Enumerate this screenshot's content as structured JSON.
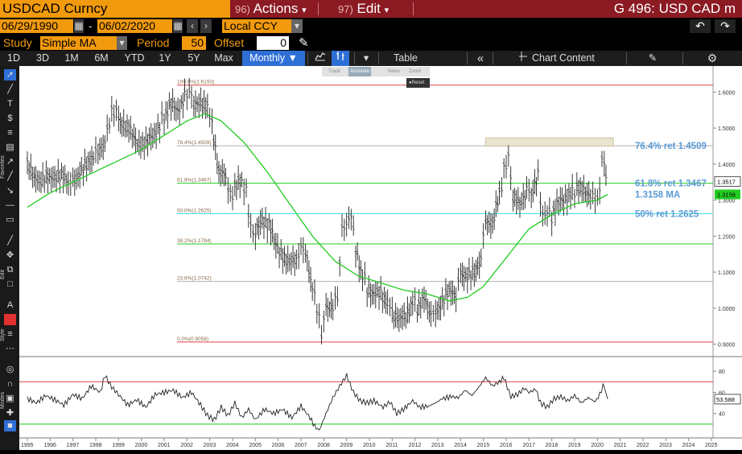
{
  "title_bar": {
    "ticker": "USDCAD Curncy",
    "actions_num": "96)",
    "actions_label": "Actions",
    "edit_num": "97)",
    "edit_label": "Edit",
    "right_title": "G 496: USD CAD m"
  },
  "date_row": {
    "start_date": "06/29/1990",
    "end_date": "06/02/2020",
    "currency": "Local CCY"
  },
  "study_row": {
    "study_label": "Study",
    "study_value": "Simple MA",
    "period_label": "Period",
    "period_value": "50",
    "offset_label": "Offset",
    "offset_value": "0"
  },
  "toolbar": {
    "ranges": [
      "1D",
      "3D",
      "1M",
      "6M",
      "YTD",
      "1Y",
      "5Y",
      "Max"
    ],
    "frequency": "Monthly",
    "table_label": "Table",
    "chart_content_label": "Chart Content"
  },
  "mini_toolbar": {
    "track": "Track",
    "annotate": "Annotate",
    "news": "News",
    "zoom": "Zoom",
    "reset": "Reset"
  },
  "left_labels": {
    "favorites": "Favorites",
    "edit": "Edit",
    "style": "Style",
    "modes": "Modes"
  },
  "colors": {
    "brand_orange": "#f29a0d",
    "title_red": "#8b1a23",
    "ma_green": "#22cc22",
    "fib_label_blue": "#5b9bd5"
  },
  "chart_data": {
    "type": "line",
    "x_label_years": [
      "1995",
      "1996",
      "1997",
      "1998",
      "1999",
      "2000",
      "2001",
      "2002",
      "2003",
      "2004",
      "2005",
      "2006",
      "2007",
      "2008",
      "2009",
      "2010",
      "2011",
      "2012",
      "2013",
      "2014",
      "2015",
      "2016",
      "2017",
      "2018",
      "2019",
      "2020",
      "2021",
      "2022",
      "2023",
      "2024",
      "2025"
    ],
    "price_ticks": [
      "1.6000",
      "1.5000",
      "1.4000",
      "1.3000",
      "1.2000",
      "1.1000",
      "1.0000",
      "0.9000"
    ],
    "ylim": [
      0.89,
      1.65
    ],
    "last_price": "1.3517",
    "ma_value": "1.3158",
    "fib_levels": [
      {
        "label": "100.0%(1.6193)",
        "value": 1.6193,
        "color": "#e04040"
      },
      {
        "label": "76.4%(1.4509)",
        "value": 1.4509,
        "color": "#b0b0b0"
      },
      {
        "label": "61.8%(1.3467)",
        "value": 1.3467,
        "color": "#22cc22"
      },
      {
        "label": "50.0%(1.2625)",
        "value": 1.2625,
        "color": "#33dddd"
      },
      {
        "label": "38.2%(1.1784)",
        "value": 1.1784,
        "color": "#22cc22"
      },
      {
        "label": "23.6%(1.0742)",
        "value": 1.0742,
        "color": "#b0b0b0"
      },
      {
        "label": "0.0%(0.9058)",
        "value": 0.9058,
        "color": "#e04040"
      }
    ],
    "annotations": [
      {
        "text": "76.4% ret 1.4509",
        "value": 1.4509
      },
      {
        "text": "61.8% ret 1.3467",
        "value": 1.3467
      },
      {
        "text": "1.3158 MA",
        "value": 1.3158
      },
      {
        "text": "50% ret 1.2625",
        "value": 1.2625
      }
    ],
    "price_series": [
      [
        1995.0,
        1.39
      ],
      [
        1995.3,
        1.37
      ],
      [
        1995.6,
        1.35
      ],
      [
        1995.9,
        1.36
      ],
      [
        1996.2,
        1.37
      ],
      [
        1996.5,
        1.36
      ],
      [
        1996.8,
        1.35
      ],
      [
        1997.0,
        1.35
      ],
      [
        1997.3,
        1.38
      ],
      [
        1997.6,
        1.39
      ],
      [
        1997.9,
        1.42
      ],
      [
        1998.1,
        1.44
      ],
      [
        1998.4,
        1.46
      ],
      [
        1998.6,
        1.52
      ],
      [
        1998.8,
        1.55
      ],
      [
        1999.0,
        1.53
      ],
      [
        1999.3,
        1.5
      ],
      [
        1999.6,
        1.48
      ],
      [
        1999.9,
        1.46
      ],
      [
        2000.2,
        1.45
      ],
      [
        2000.5,
        1.48
      ],
      [
        2000.8,
        1.51
      ],
      [
        2001.0,
        1.53
      ],
      [
        2001.3,
        1.56
      ],
      [
        2001.6,
        1.55
      ],
      [
        2001.9,
        1.59
      ],
      [
        2002.1,
        1.6
      ],
      [
        2002.3,
        1.57
      ],
      [
        2002.6,
        1.56
      ],
      [
        2002.9,
        1.56
      ],
      [
        2003.1,
        1.51
      ],
      [
        2003.4,
        1.38
      ],
      [
        2003.7,
        1.36
      ],
      [
        2003.9,
        1.31
      ],
      [
        2004.1,
        1.33
      ],
      [
        2004.4,
        1.35
      ],
      [
        2004.6,
        1.32
      ],
      [
        2004.8,
        1.22
      ],
      [
        2005.0,
        1.2
      ],
      [
        2005.3,
        1.25
      ],
      [
        2005.6,
        1.23
      ],
      [
        2005.9,
        1.17
      ],
      [
        2006.2,
        1.15
      ],
      [
        2006.5,
        1.12
      ],
      [
        2006.8,
        1.13
      ],
      [
        2007.0,
        1.17
      ],
      [
        2007.2,
        1.15
      ],
      [
        2007.5,
        1.06
      ],
      [
        2007.7,
        1.0
      ],
      [
        2007.9,
        0.93
      ],
      [
        2008.1,
        1.0
      ],
      [
        2008.4,
        1.01
      ],
      [
        2008.6,
        1.03
      ],
      [
        2008.8,
        1.22
      ],
      [
        2009.0,
        1.23
      ],
      [
        2009.2,
        1.26
      ],
      [
        2009.4,
        1.16
      ],
      [
        2009.7,
        1.09
      ],
      [
        2009.9,
        1.06
      ],
      [
        2010.2,
        1.03
      ],
      [
        2010.5,
        1.04
      ],
      [
        2010.8,
        1.02
      ],
      [
        2011.0,
        0.99
      ],
      [
        2011.3,
        0.96
      ],
      [
        2011.6,
        0.98
      ],
      [
        2011.9,
        1.02
      ],
      [
        2012.1,
        1.0
      ],
      [
        2012.4,
        1.02
      ],
      [
        2012.7,
        0.98
      ],
      [
        2012.9,
        0.99
      ],
      [
        2013.2,
        1.02
      ],
      [
        2013.5,
        1.04
      ],
      [
        2013.8,
        1.04
      ],
      [
        2014.0,
        1.1
      ],
      [
        2014.3,
        1.09
      ],
      [
        2014.6,
        1.09
      ],
      [
        2014.9,
        1.14
      ],
      [
        2015.1,
        1.25
      ],
      [
        2015.4,
        1.23
      ],
      [
        2015.7,
        1.31
      ],
      [
        2015.9,
        1.38
      ],
      [
        2016.1,
        1.42
      ],
      [
        2016.3,
        1.3
      ],
      [
        2016.6,
        1.29
      ],
      [
        2016.9,
        1.33
      ],
      [
        2017.1,
        1.32
      ],
      [
        2017.4,
        1.36
      ],
      [
        2017.6,
        1.25
      ],
      [
        2017.8,
        1.27
      ],
      [
        2018.0,
        1.25
      ],
      [
        2018.3,
        1.29
      ],
      [
        2018.6,
        1.31
      ],
      [
        2018.9,
        1.32
      ],
      [
        2019.1,
        1.33
      ],
      [
        2019.4,
        1.32
      ],
      [
        2019.7,
        1.32
      ],
      [
        2019.9,
        1.3
      ],
      [
        2020.1,
        1.32
      ],
      [
        2020.2,
        1.42
      ],
      [
        2020.3,
        1.4
      ],
      [
        2020.45,
        1.35
      ]
    ],
    "ma_series": [
      [
        1995.0,
        1.28
      ],
      [
        1996.0,
        1.32
      ],
      [
        1997.0,
        1.35
      ],
      [
        1998.0,
        1.38
      ],
      [
        1999.0,
        1.41
      ],
      [
        2000.0,
        1.44
      ],
      [
        2001.0,
        1.48
      ],
      [
        2002.0,
        1.52
      ],
      [
        2002.8,
        1.54
      ],
      [
        2003.5,
        1.52
      ],
      [
        2004.5,
        1.46
      ],
      [
        2005.5,
        1.38
      ],
      [
        2006.5,
        1.29
      ],
      [
        2007.5,
        1.2
      ],
      [
        2008.5,
        1.13
      ],
      [
        2009.5,
        1.09
      ],
      [
        2010.5,
        1.07
      ],
      [
        2011.5,
        1.05
      ],
      [
        2012.5,
        1.04
      ],
      [
        2013.5,
        1.02
      ],
      [
        2014.3,
        1.03
      ],
      [
        2015.0,
        1.06
      ],
      [
        2016.0,
        1.14
      ],
      [
        2017.0,
        1.22
      ],
      [
        2018.0,
        1.26
      ],
      [
        2019.0,
        1.29
      ],
      [
        2020.0,
        1.3
      ],
      [
        2020.45,
        1.3158
      ]
    ],
    "rsi": {
      "ticks": [
        "80",
        "60",
        "40"
      ],
      "upper": 70,
      "lower": 30,
      "last_value": "53.588",
      "series": [
        [
          1995.0,
          54
        ],
        [
          1995.4,
          50
        ],
        [
          1995.8,
          57
        ],
        [
          1996.2,
          53
        ],
        [
          1996.6,
          48
        ],
        [
          1997.0,
          58
        ],
        [
          1997.4,
          54
        ],
        [
          1997.8,
          66
        ],
        [
          1998.2,
          60
        ],
        [
          1998.4,
          76
        ],
        [
          1998.7,
          65
        ],
        [
          1999.0,
          58
        ],
        [
          1999.4,
          48
        ],
        [
          1999.8,
          53
        ],
        [
          2000.2,
          46
        ],
        [
          2000.6,
          58
        ],
        [
          2001.0,
          60
        ],
        [
          2001.4,
          62
        ],
        [
          2001.8,
          55
        ],
        [
          2002.2,
          60
        ],
        [
          2002.6,
          48
        ],
        [
          2002.9,
          38
        ],
        [
          2003.2,
          34
        ],
        [
          2003.5,
          46
        ],
        [
          2003.8,
          38
        ],
        [
          2004.1,
          50
        ],
        [
          2004.4,
          36
        ],
        [
          2004.7,
          44
        ],
        [
          2005.0,
          34
        ],
        [
          2005.4,
          44
        ],
        [
          2005.8,
          40
        ],
        [
          2006.2,
          44
        ],
        [
          2006.6,
          36
        ],
        [
          2007.0,
          47
        ],
        [
          2007.4,
          36
        ],
        [
          2007.6,
          28
        ],
        [
          2007.8,
          24
        ],
        [
          2008.1,
          40
        ],
        [
          2008.4,
          55
        ],
        [
          2008.7,
          66
        ],
        [
          2009.0,
          76
        ],
        [
          2009.3,
          60
        ],
        [
          2009.6,
          52
        ],
        [
          2009.9,
          50
        ],
        [
          2010.2,
          52
        ],
        [
          2010.6,
          46
        ],
        [
          2010.9,
          51
        ],
        [
          2011.2,
          40
        ],
        [
          2011.5,
          44
        ],
        [
          2011.9,
          52
        ],
        [
          2012.2,
          46
        ],
        [
          2012.6,
          47
        ],
        [
          2012.9,
          50
        ],
        [
          2013.2,
          54
        ],
        [
          2013.6,
          56
        ],
        [
          2013.9,
          55
        ],
        [
          2014.2,
          62
        ],
        [
          2014.5,
          57
        ],
        [
          2014.8,
          65
        ],
        [
          2015.1,
          74
        ],
        [
          2015.4,
          66
        ],
        [
          2015.7,
          70
        ],
        [
          2015.9,
          74
        ],
        [
          2016.2,
          56
        ],
        [
          2016.5,
          58
        ],
        [
          2016.8,
          64
        ],
        [
          2017.0,
          60
        ],
        [
          2017.3,
          63
        ],
        [
          2017.5,
          50
        ],
        [
          2017.8,
          46
        ],
        [
          2018.1,
          54
        ],
        [
          2018.4,
          56
        ],
        [
          2018.7,
          52
        ],
        [
          2019.0,
          57
        ],
        [
          2019.3,
          50
        ],
        [
          2019.6,
          55
        ],
        [
          2019.9,
          51
        ],
        [
          2020.1,
          58
        ],
        [
          2020.25,
          66
        ],
        [
          2020.35,
          62
        ],
        [
          2020.45,
          53.6
        ]
      ]
    }
  }
}
